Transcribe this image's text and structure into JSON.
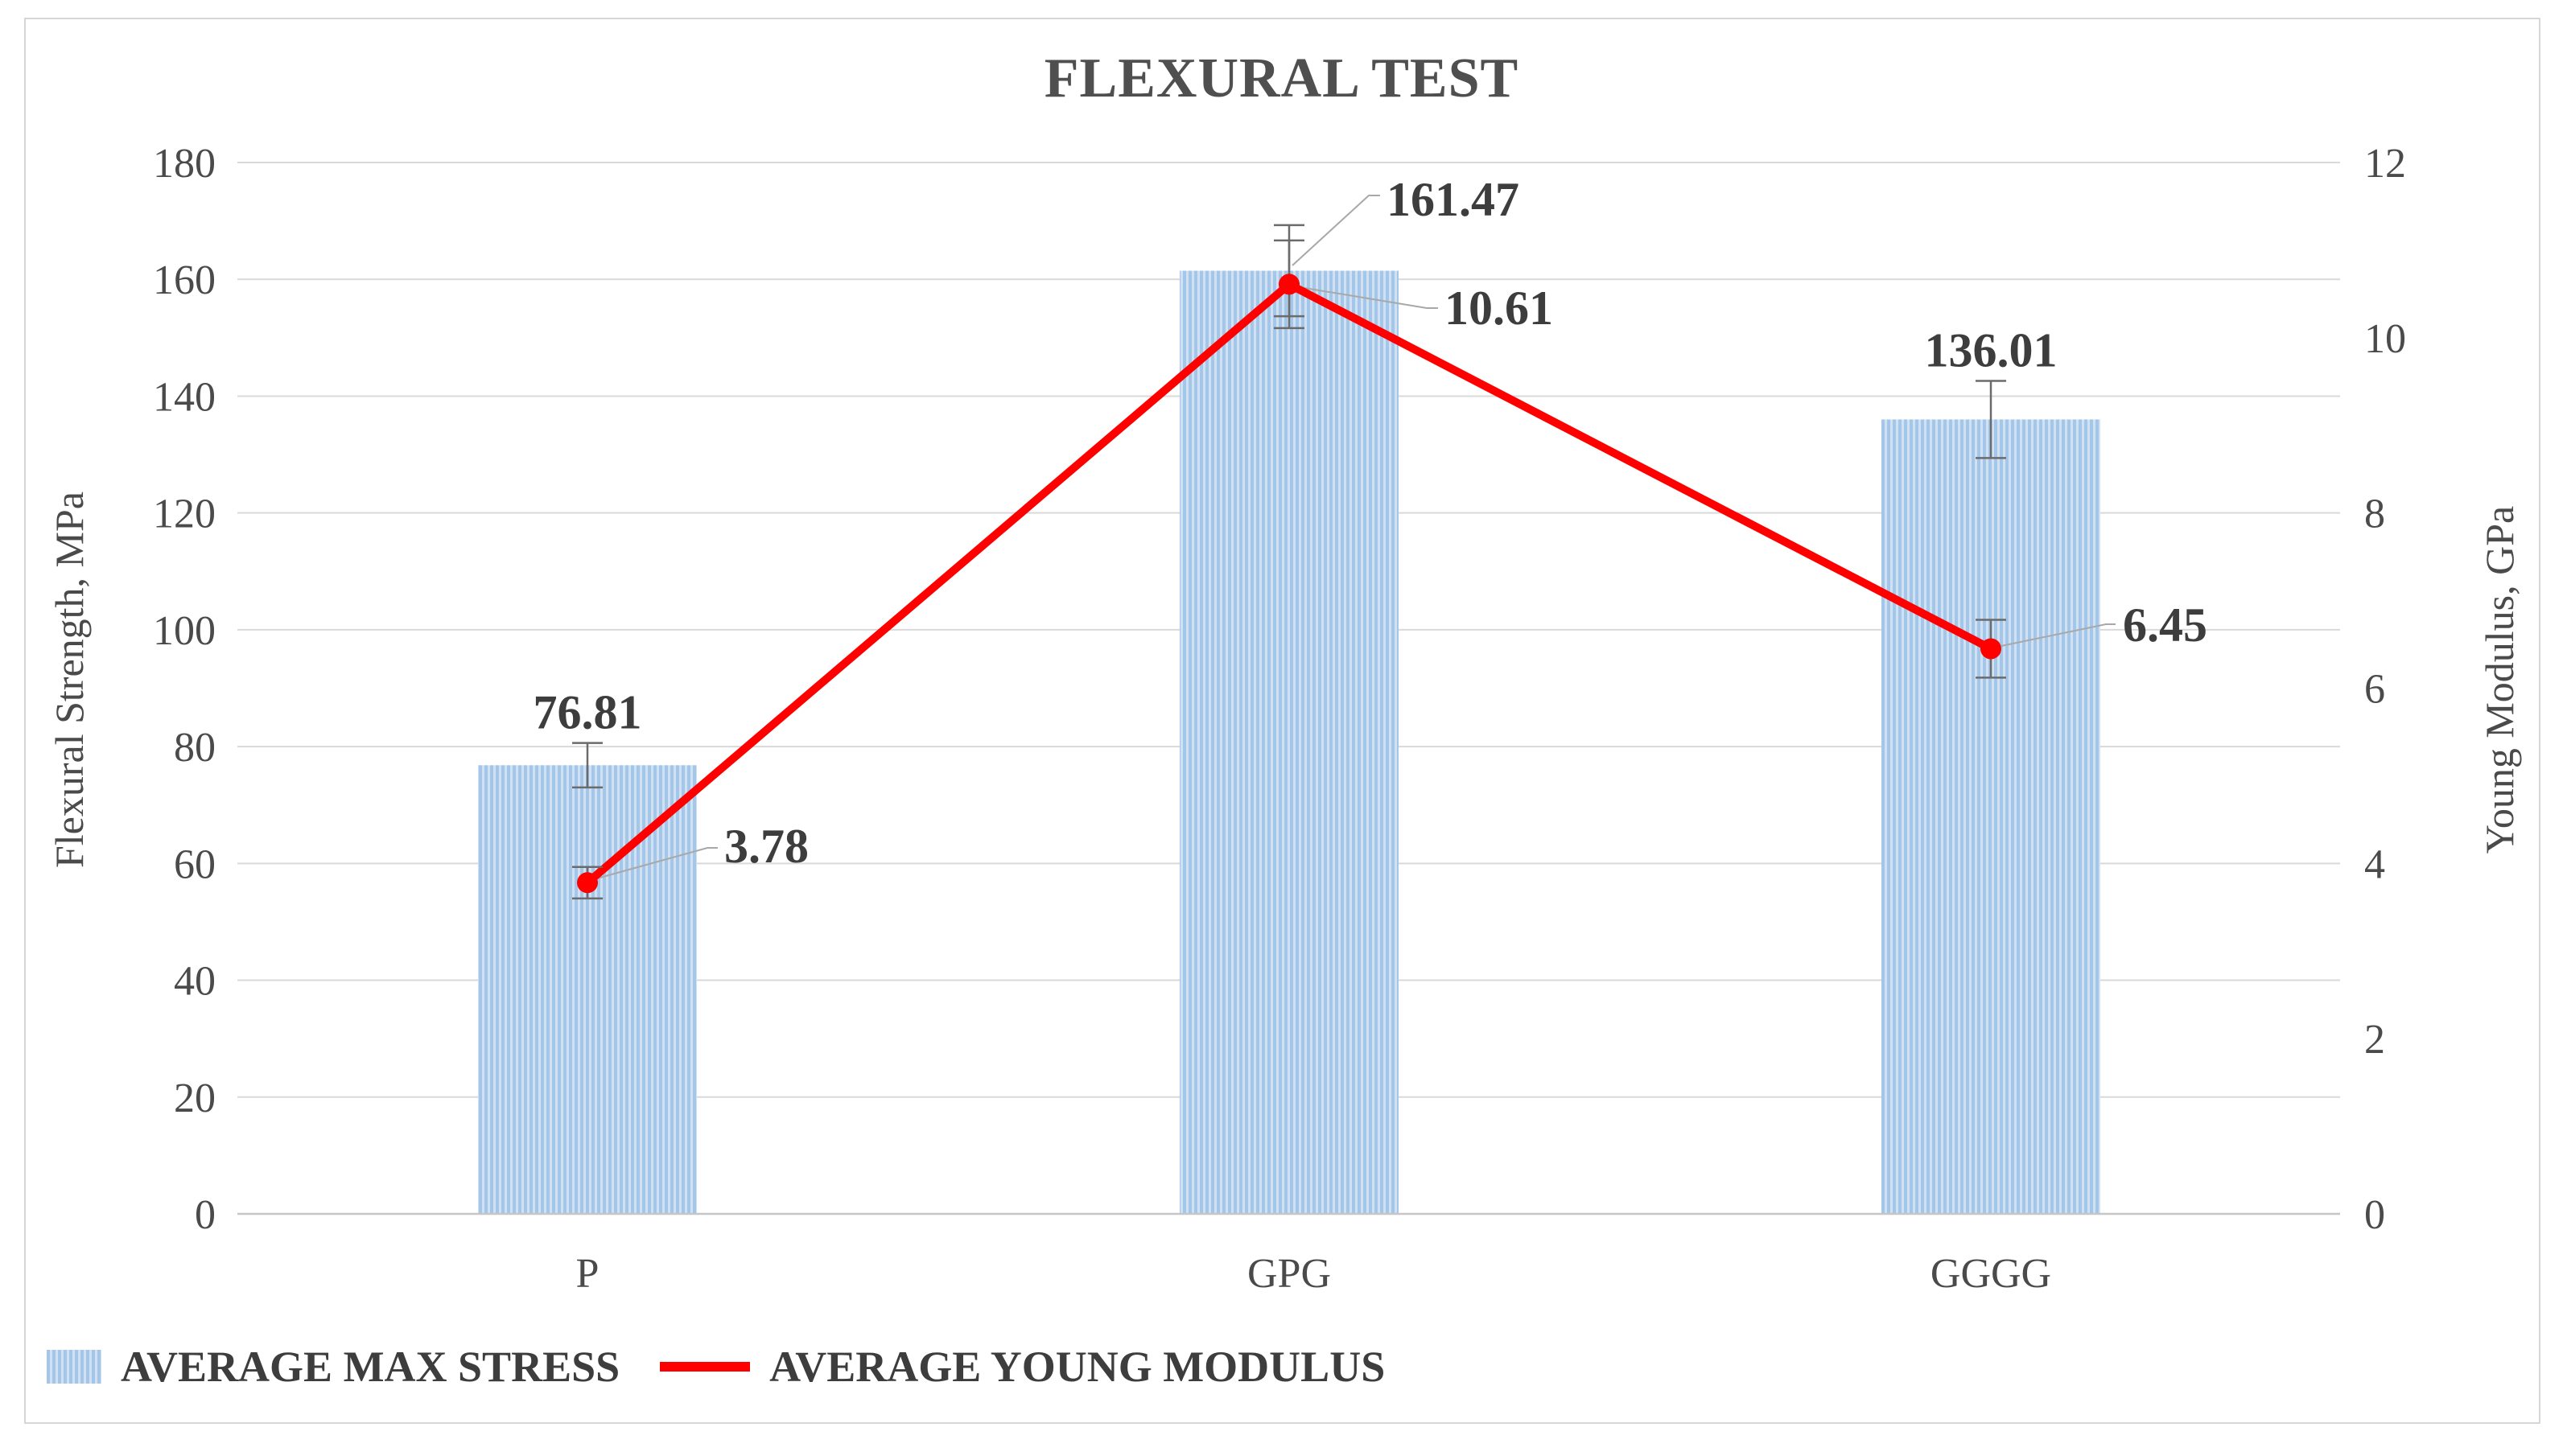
{
  "chart_data": {
    "type": "combo-bar-line",
    "title": "FLEXURAL TEST",
    "categories": [
      "P",
      "GPG",
      "GGGG"
    ],
    "series": [
      {
        "name": "AVERAGE MAX STRESS",
        "type": "bar",
        "axis": "left",
        "values": [
          76.81,
          161.47,
          136.01
        ],
        "data_labels": [
          "76.81",
          "161.47",
          "136.01"
        ],
        "error_plus_minus": [
          3.8,
          7.8,
          6.6
        ]
      },
      {
        "name": "AVERAGE YOUNG MODULUS",
        "type": "line",
        "axis": "right",
        "values": [
          3.78,
          10.61,
          6.45
        ],
        "data_labels": [
          "3.78",
          "10.61",
          "6.45"
        ],
        "error_plus_minus": [
          0.18,
          0.5,
          0.33
        ]
      }
    ],
    "left_axis": {
      "label": "Flexural Strength, MPa",
      "min": 0,
      "max": 180,
      "step": 20,
      "ticks": [
        "0",
        "20",
        "40",
        "60",
        "80",
        "100",
        "120",
        "140",
        "160",
        "180"
      ]
    },
    "right_axis": {
      "label": "Young Modulus, GPa",
      "min": 0,
      "max": 12,
      "step": 2,
      "ticks": [
        "0",
        "2",
        "4",
        "6",
        "8",
        "10",
        "12"
      ]
    },
    "gridlines": "horizontal-only",
    "legend_position": "bottom-left",
    "colors": {
      "bar_stripe": "#a3c6e9",
      "bar_stripe_light": "#cfe1f3",
      "line": "#fe0000",
      "gridline": "#d9d9d9",
      "axis_line": "#c6c6c6",
      "tick_text": "#4a4a4a",
      "data_label_text": "#3d3d3d",
      "title_text": "#4f4f4f",
      "error_bar": "#6b6b6b",
      "leader_line": "#a8a8a8"
    }
  }
}
